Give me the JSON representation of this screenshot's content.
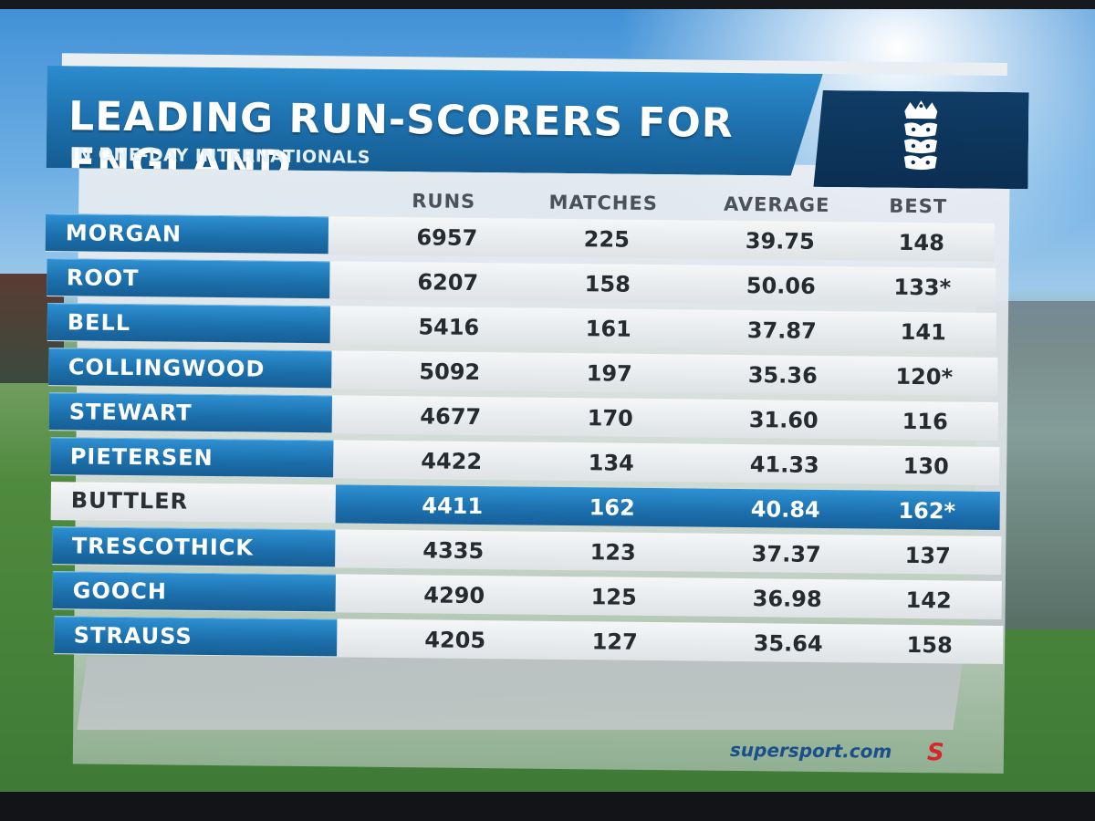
{
  "graphic": {
    "title": "LEADING RUN-SCORERS FOR ENGLAND",
    "subtitle": "IN ONE-DAY INTERNATIONALS",
    "crest_icon": "england-cricket-crest-icon",
    "watermark": "supersport.com",
    "broadcaster_logo": "S"
  },
  "table": {
    "columns": [
      "RUNS",
      "MATCHES",
      "AVERAGE",
      "BEST"
    ],
    "rows": [
      {
        "name": "MORGAN",
        "runs": "6957",
        "matches": "225",
        "average": "39.75",
        "best": "148"
      },
      {
        "name": "ROOT",
        "runs": "6207",
        "matches": "158",
        "average": "50.06",
        "best": "133*"
      },
      {
        "name": "BELL",
        "runs": "5416",
        "matches": "161",
        "average": "37.87",
        "best": "141"
      },
      {
        "name": "COLLINGWOOD",
        "runs": "5092",
        "matches": "197",
        "average": "35.36",
        "best": "120*"
      },
      {
        "name": "STEWART",
        "runs": "4677",
        "matches": "170",
        "average": "31.60",
        "best": "116"
      },
      {
        "name": "PIETERSEN",
        "runs": "4422",
        "matches": "134",
        "average": "41.33",
        "best": "130"
      },
      {
        "name": "BUTTLER",
        "runs": "4411",
        "matches": "162",
        "average": "40.84",
        "best": "162*",
        "highlighted": true
      },
      {
        "name": "TRESCOTHICK",
        "runs": "4335",
        "matches": "123",
        "average": "37.37",
        "best": "137"
      },
      {
        "name": "GOOCH",
        "runs": "4290",
        "matches": "125",
        "average": "36.98",
        "best": "142"
      },
      {
        "name": "STRAUSS",
        "runs": "4205",
        "matches": "127",
        "average": "35.64",
        "best": "158"
      }
    ]
  },
  "colors": {
    "accent_blue": "#1d6fab",
    "crest_navy": "#0b2f52",
    "panel": "#e4e8eb"
  }
}
